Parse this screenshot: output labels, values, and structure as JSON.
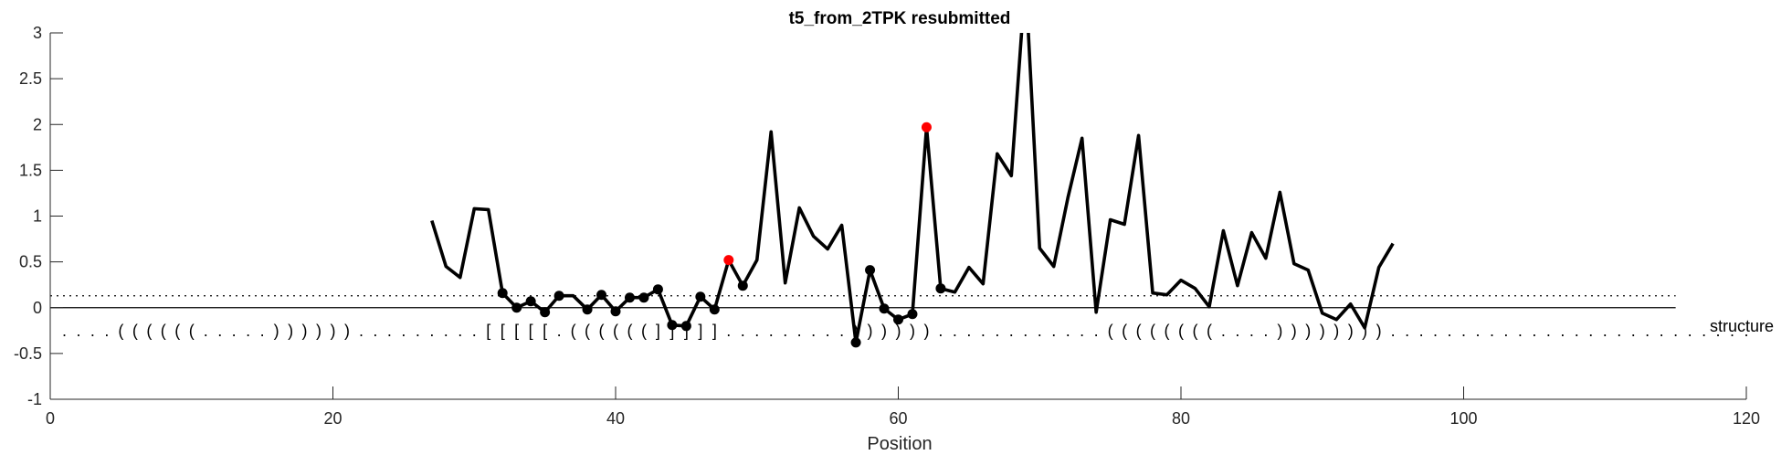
{
  "chart_data": {
    "type": "line",
    "title": "t5_from_2TPK resubmitted",
    "xlabel": "Position",
    "ylabel": "",
    "xlim": [
      0,
      120
    ],
    "ylim": [
      -1,
      3
    ],
    "xticks": [
      0,
      20,
      40,
      60,
      80,
      100,
      120
    ],
    "yticks": [
      -1,
      -0.5,
      0,
      0.5,
      1,
      1.5,
      2,
      2.5,
      3
    ],
    "ytick_labels": [
      "-1",
      "-0.5",
      "0",
      "0.5",
      "1",
      "1.5",
      "2",
      "2.5",
      "3"
    ],
    "grid": false,
    "line_color": "#000000",
    "highlight_color": "#ff0000",
    "series": [
      {
        "x": [
          27,
          28,
          29,
          30,
          31,
          32,
          33,
          34,
          35,
          36,
          37,
          38,
          39,
          40,
          41,
          42,
          43,
          44,
          45,
          46,
          47,
          48,
          49,
          50,
          51,
          52,
          53,
          54,
          55,
          56,
          57,
          58,
          59,
          60,
          61,
          62,
          63,
          64,
          65,
          66,
          67,
          68,
          69,
          70,
          71,
          72,
          73,
          74,
          75,
          76,
          77,
          78,
          79,
          80,
          81,
          82,
          83,
          84,
          85,
          86,
          87,
          88,
          89,
          90,
          91,
          92,
          93,
          94,
          95
        ],
        "y": [
          0.95,
          0.45,
          0.33,
          1.08,
          1.07,
          0.16,
          0.0,
          0.07,
          -0.05,
          0.13,
          0.13,
          -0.02,
          0.14,
          -0.04,
          0.11,
          0.11,
          0.2,
          -0.19,
          -0.2,
          0.12,
          -0.02,
          0.52,
          0.24,
          0.52,
          1.92,
          0.27,
          1.09,
          0.78,
          0.64,
          0.9,
          -0.38,
          0.41,
          -0.01,
          -0.13,
          -0.07,
          1.97,
          0.21,
          0.17,
          0.44,
          0.26,
          1.68,
          1.44,
          3.6,
          0.65,
          0.45,
          1.2,
          1.85,
          -0.05,
          0.96,
          0.91,
          1.88,
          0.16,
          0.14,
          0.3,
          0.21,
          0.01,
          0.84,
          0.24,
          0.82,
          0.54,
          1.26,
          0.48,
          0.41,
          -0.06,
          -0.13,
          0.04,
          -0.22,
          0.44,
          0.7
        ]
      }
    ],
    "black_markers": [
      [
        32,
        0.16
      ],
      [
        33,
        0.0
      ],
      [
        34,
        0.07
      ],
      [
        35,
        -0.05
      ],
      [
        36,
        0.13
      ],
      [
        38,
        -0.02
      ],
      [
        39,
        0.14
      ],
      [
        40,
        -0.04
      ],
      [
        41,
        0.11
      ],
      [
        42,
        0.11
      ],
      [
        43,
        0.2
      ],
      [
        44,
        -0.19
      ],
      [
        45,
        -0.2
      ],
      [
        46,
        0.12
      ],
      [
        47,
        -0.02
      ],
      [
        49,
        0.24
      ],
      [
        57,
        -0.38
      ],
      [
        58,
        0.41
      ],
      [
        59,
        -0.01
      ],
      [
        60,
        -0.13
      ],
      [
        61,
        -0.07
      ],
      [
        63,
        0.21
      ]
    ],
    "red_markers": [
      [
        48,
        0.52
      ],
      [
        62,
        1.97
      ]
    ],
    "threshold_line": 0.13,
    "zero_line": {
      "y": 0,
      "x_end": 115
    },
    "structure": {
      "label": "structure",
      "y": -0.25,
      "sequence": "....((((((.....)))))).........[[[[[.((((((]]]]].........))))))............((((((((....)))))))).........................."
    }
  }
}
